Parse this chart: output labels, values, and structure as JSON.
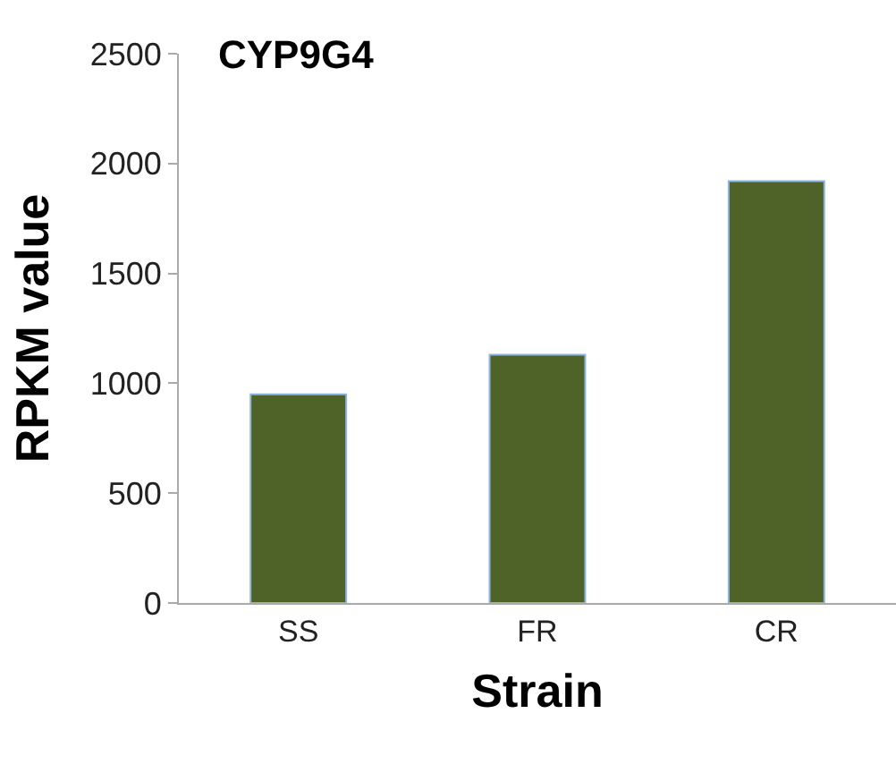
{
  "chart_data": {
    "type": "bar",
    "title": "CYP9G4",
    "xlabel": "Strain",
    "ylabel": "RPKM value",
    "categories": [
      "SS",
      "FR",
      "CR"
    ],
    "values": [
      950,
      1130,
      1920
    ],
    "color": "#4f6228",
    "ylim": [
      0,
      2500
    ],
    "yticks": [
      0,
      500,
      1000,
      1500,
      2000,
      2500
    ]
  }
}
